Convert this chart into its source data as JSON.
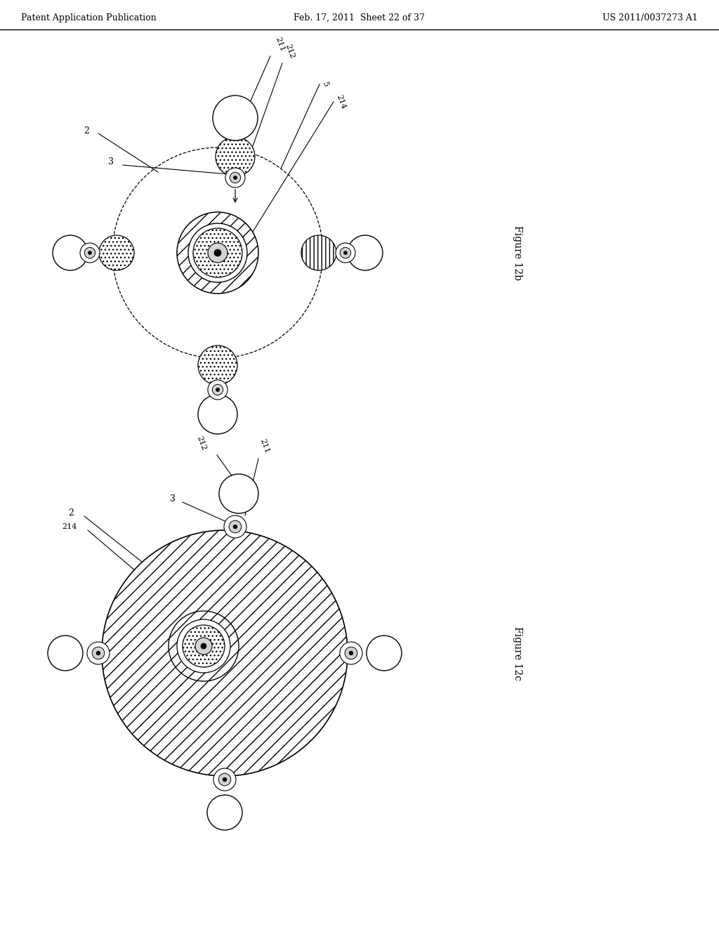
{
  "header_left": "Patent Application Publication",
  "header_mid": "Feb. 17, 2011  Sheet 22 of 37",
  "header_right": "US 2011/0037273 A1",
  "fig_label_b": "Figure 12b",
  "fig_label_c": "Figure 12c",
  "background": "#ffffff"
}
